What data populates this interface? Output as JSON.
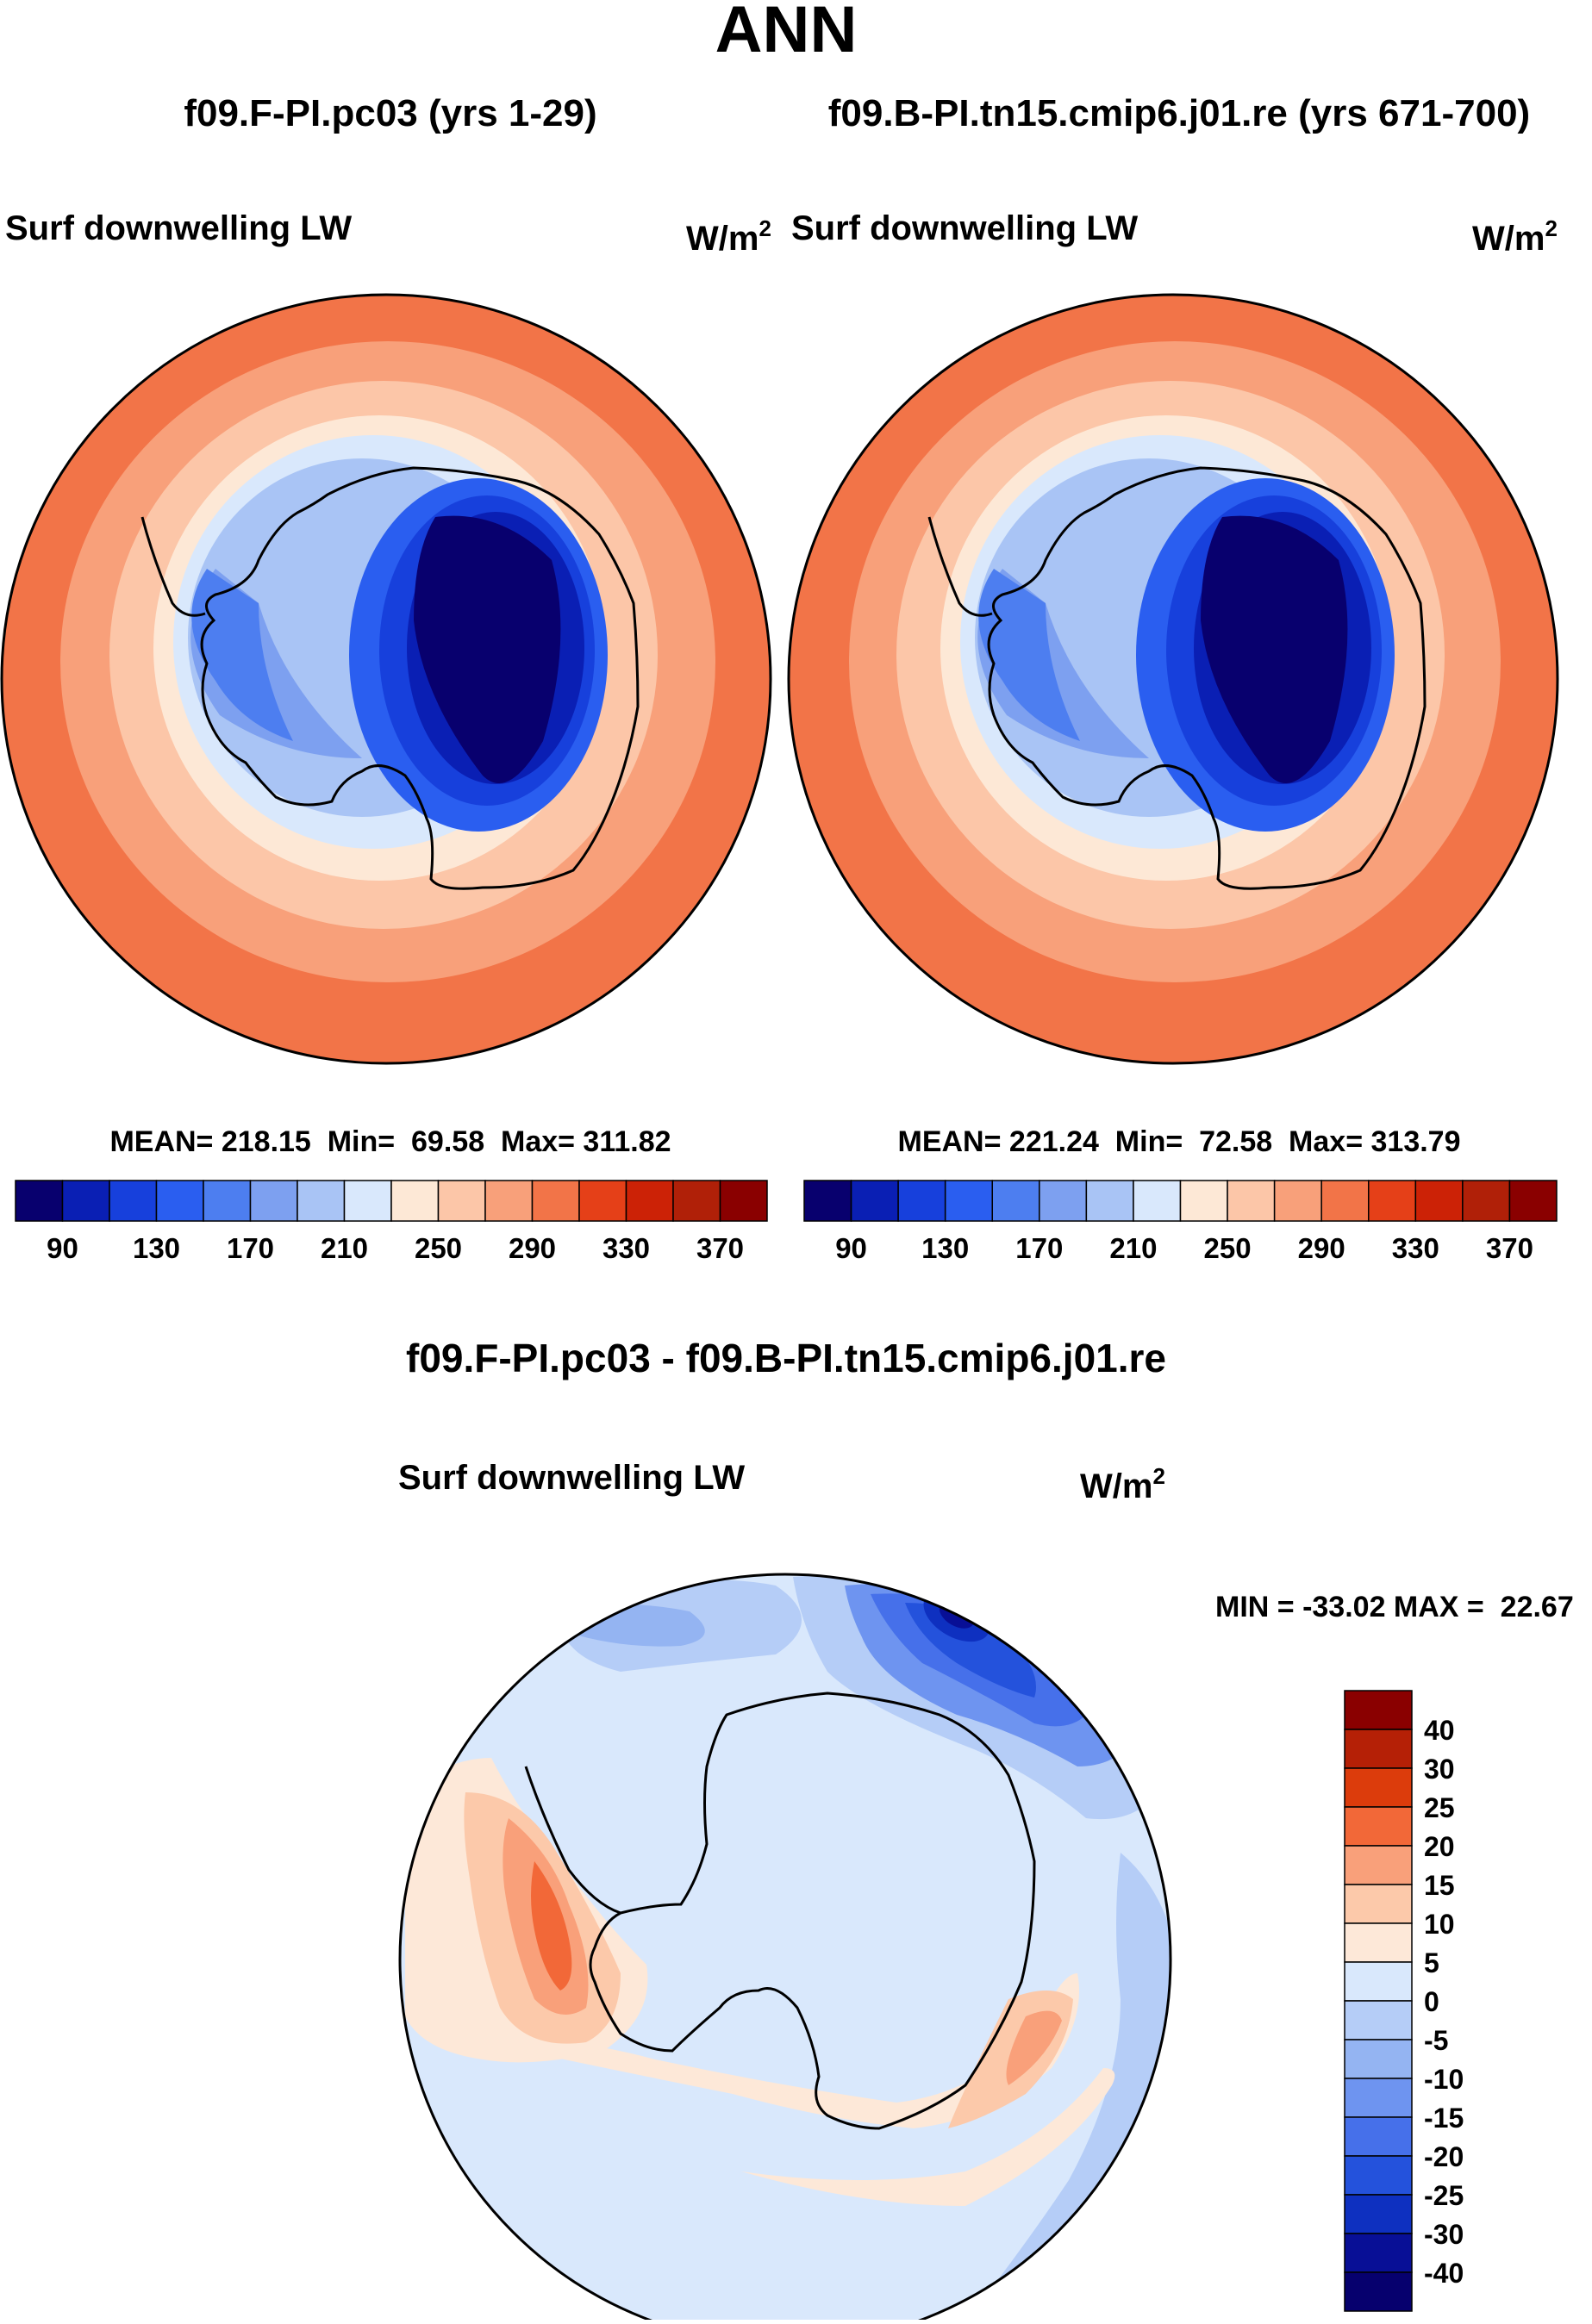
{
  "page_title": "ANN",
  "chart_data": [
    {
      "type": "heatmap",
      "projection": "south-polar-stereographic",
      "title": "f09.F-PI.pc03 (yrs 1-29)",
      "variable": "Surf downwelling LW",
      "units": "W/m",
      "units_exp": "2",
      "stats_text": "MEAN= 218.15  Min=  69.58  Max= 311.82",
      "stats": {
        "mean": 218.15,
        "min": 69.58,
        "max": 311.82
      },
      "levels": [
        90,
        110,
        130,
        150,
        170,
        190,
        210,
        230,
        250,
        270,
        290,
        310,
        330,
        350,
        370
      ],
      "tick_labels": [
        "90",
        "130",
        "170",
        "210",
        "250",
        "290",
        "330",
        "370"
      ],
      "colors": [
        "#08006e",
        "#0a1fb4",
        "#1740dc",
        "#2a5ef0",
        "#4d7ef0",
        "#7da0f0",
        "#a9c4f5",
        "#d9e8fc",
        "#fde8d6",
        "#fcc6a8",
        "#f8a07a",
        "#f27448",
        "#e54018",
        "#cc2206",
        "#b02008",
        "#8a0000"
      ]
    },
    {
      "type": "heatmap",
      "projection": "south-polar-stereographic",
      "title": "f09.B-PI.tn15.cmip6.j01.re (yrs 671-700)",
      "variable": "Surf downwelling LW",
      "units": "W/m",
      "units_exp": "2",
      "stats_text": "MEAN= 221.24  Min=  72.58  Max= 313.79",
      "stats": {
        "mean": 221.24,
        "min": 72.58,
        "max": 313.79
      },
      "levels": [
        90,
        110,
        130,
        150,
        170,
        190,
        210,
        230,
        250,
        270,
        290,
        310,
        330,
        350,
        370
      ],
      "tick_labels": [
        "90",
        "130",
        "170",
        "210",
        "250",
        "290",
        "330",
        "370"
      ],
      "colors": [
        "#08006e",
        "#0a1fb4",
        "#1740dc",
        "#2a5ef0",
        "#4d7ef0",
        "#7da0f0",
        "#a9c4f5",
        "#d9e8fc",
        "#fde8d6",
        "#fcc6a8",
        "#f8a07a",
        "#f27448",
        "#e54018",
        "#cc2206",
        "#b02008",
        "#8a0000"
      ]
    },
    {
      "type": "heatmap",
      "projection": "south-polar-stereographic",
      "title": "f09.F-PI.pc03 - f09.B-PI.tn15.cmip6.j01.re",
      "variable": "Surf downwelling LW",
      "units": "W/m",
      "units_exp": "2",
      "stats_text": "MIN = -33.02 MAX =  22.67",
      "stats": {
        "min": -33.02,
        "max": 22.67
      },
      "levels": [
        -40,
        -30,
        -25,
        -20,
        -15,
        -10,
        -5,
        0,
        5,
        10,
        15,
        20,
        25,
        30,
        40
      ],
      "tick_labels": [
        "40",
        "30",
        "25",
        "20",
        "15",
        "10",
        "5",
        "0",
        "-5",
        "-10",
        "-15",
        "-20",
        "-25",
        "-30",
        "-40"
      ],
      "colors": [
        "#8a0000",
        "#b52006",
        "#dc3c0c",
        "#f26838",
        "#f9a07a",
        "#fcc9aa",
        "#fde8d8",
        "#d9e8fc",
        "#b5cdf7",
        "#94b4f2",
        "#6e94f0",
        "#4670ea",
        "#2452dc",
        "#0e30c0",
        "#080f96",
        "#06006e"
      ]
    }
  ]
}
